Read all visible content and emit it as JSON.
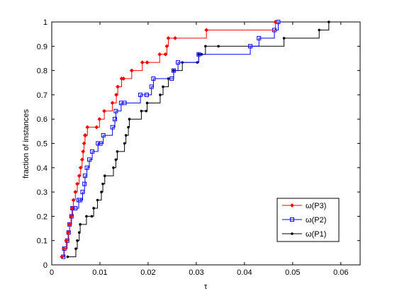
{
  "chart_data": {
    "type": "line",
    "title": "",
    "xlabel": "τ",
    "ylabel": "fraction of instances",
    "xlim": [
      0,
      0.064
    ],
    "ylim": [
      0,
      1
    ],
    "xticks": [
      "0",
      "0.01",
      "0.02",
      "0.03",
      "0.04",
      "0.05",
      "0.06"
    ],
    "yticks": [
      "0",
      "0.1",
      "0.2",
      "0.3",
      "0.4",
      "0.5",
      "0.6",
      "0.7",
      "0.8",
      "0.9",
      "1"
    ],
    "legend_position": "bottom-right",
    "grid": false,
    "series": [
      {
        "name": "ω(P3)",
        "color": "#ff0000",
        "marker": "diamond",
        "x": [
          0.0021,
          0.0025,
          0.003,
          0.0034,
          0.0037,
          0.004,
          0.0042,
          0.0045,
          0.0049,
          0.0053,
          0.0057,
          0.006,
          0.0063,
          0.0065,
          0.0067,
          0.0069,
          0.007,
          0.0074,
          0.0093,
          0.0099,
          0.0109,
          0.0126,
          0.0134,
          0.0137,
          0.0145,
          0.0149,
          0.0166,
          0.0188,
          0.0198,
          0.0224,
          0.0236,
          0.0239,
          0.0242,
          0.0256,
          0.0321,
          0.0464
        ],
        "y": [
          0.0333,
          0.0667,
          0.1,
          0.1333,
          0.1667,
          0.2,
          0.2333,
          0.2667,
          0.3,
          0.3333,
          0.3667,
          0.4,
          0.4333,
          0.4667,
          0.5,
          0.5333,
          0.5333,
          0.5667,
          0.5667,
          0.6,
          0.6333,
          0.6667,
          0.7,
          0.7333,
          0.7667,
          0.7667,
          0.8,
          0.8333,
          0.8333,
          0.8667,
          0.8667,
          0.9,
          0.9333,
          0.9333,
          0.9667,
          1.0
        ]
      },
      {
        "name": "ω(P2)",
        "color": "#0000ff",
        "marker": "square",
        "x": [
          0.0024,
          0.0026,
          0.0032,
          0.0035,
          0.0037,
          0.0041,
          0.0043,
          0.0049,
          0.0056,
          0.0059,
          0.0064,
          0.0068,
          0.0069,
          0.0073,
          0.0078,
          0.0084,
          0.0096,
          0.0101,
          0.0107,
          0.0126,
          0.0131,
          0.0133,
          0.0144,
          0.0151,
          0.0184,
          0.0197,
          0.0207,
          0.0211,
          0.0249,
          0.0253,
          0.0262,
          0.0305,
          0.0412,
          0.043,
          0.0462,
          0.047
        ],
        "y": [
          0.0333,
          0.0667,
          0.1,
          0.1333,
          0.1667,
          0.2,
          0.2333,
          0.2333,
          0.2667,
          0.2667,
          0.3,
          0.3333,
          0.3667,
          0.4,
          0.4333,
          0.4667,
          0.5,
          0.5,
          0.5333,
          0.5667,
          0.6,
          0.6333,
          0.6667,
          0.6667,
          0.7,
          0.7,
          0.7333,
          0.7667,
          0.7667,
          0.8,
          0.8333,
          0.8667,
          0.9,
          0.9333,
          0.9667,
          1.0
        ]
      },
      {
        "name": "ω(P1)",
        "color": "#000000",
        "marker": "dot",
        "x": [
          0.0033,
          0.005,
          0.0053,
          0.0057,
          0.0059,
          0.0072,
          0.0083,
          0.0087,
          0.0095,
          0.0103,
          0.0106,
          0.011,
          0.0128,
          0.0133,
          0.0136,
          0.0151,
          0.0154,
          0.0159,
          0.0161,
          0.0186,
          0.0196,
          0.0198,
          0.0225,
          0.0231,
          0.0242,
          0.0253,
          0.0271,
          0.0302,
          0.0305,
          0.0311,
          0.0319,
          0.0346,
          0.0482,
          0.0555,
          0.0575
        ],
        "y": [
          0.0333,
          0.0667,
          0.1,
          0.1333,
          0.1667,
          0.2,
          0.2,
          0.2333,
          0.2667,
          0.3,
          0.3333,
          0.3667,
          0.4,
          0.4333,
          0.4667,
          0.5,
          0.5333,
          0.5667,
          0.6,
          0.6333,
          0.6333,
          0.6667,
          0.7,
          0.7333,
          0.7667,
          0.8,
          0.8333,
          0.8333,
          0.8667,
          0.8667,
          0.9,
          0.9,
          0.9333,
          0.9667,
          1.0
        ]
      }
    ]
  }
}
